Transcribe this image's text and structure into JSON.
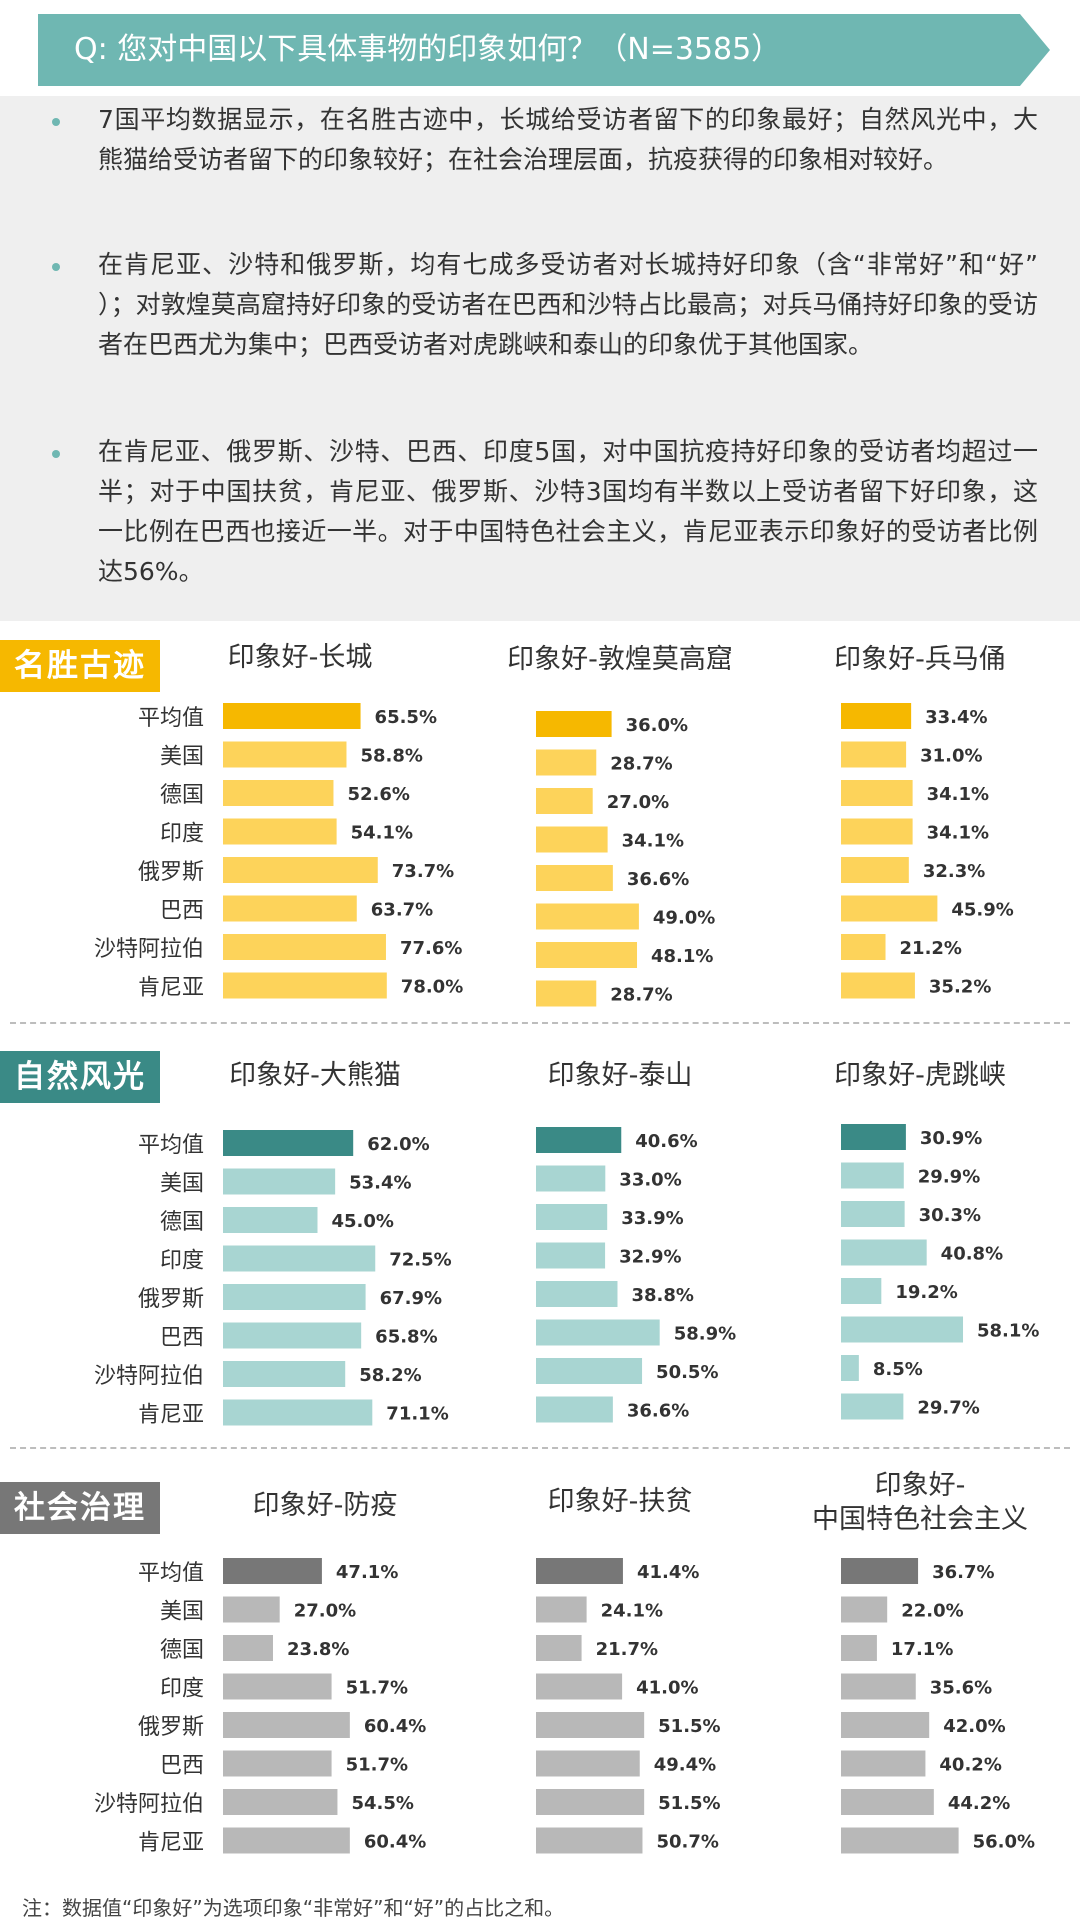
{
  "header": {
    "question": "Q: 您对中国以下具体事物的印象如何？（N=3585）"
  },
  "summary": {
    "bullets": [
      "7国平均数据显示，在名胜古迹中，长城给受访者留下的印象最好；自然风光中，大熊猫给受访者留下的印象较好；在社会治理层面，抗疫获得的印象相对较好。",
      "在肯尼亚、沙特和俄罗斯，均有七成多受访者对长城持好印象（含“非常好”和“好” ）；对敦煌莫高窟持好印象的受访者在巴西和沙特占比最高；对兵马俑持好印象的受访者在巴西尤为集中；巴西受访者对虎跳峡和泰山的印象优于其他国家。",
      "在肯尼亚、俄罗斯、沙特、巴西、印度5国，对中国抗疫持好印象的受访者均超过一半；对于中国扶贫，肯尼亚、俄罗斯、沙特3国均有半数以上受访者留下好印象，这一比例在巴西也接近一半。对于中国特色社会主义，肯尼亚表示印象好的受访者比例达56%。"
    ]
  },
  "categories": [
    "平均值",
    "美国",
    "德国",
    "印度",
    "俄罗斯",
    "巴西",
    "沙特阿拉伯",
    "肯尼亚"
  ],
  "sections": [
    {
      "label": "名胜古迹",
      "color_dark": "#f6b800",
      "color_light": "#fdd35a"
    },
    {
      "label": "自然风光",
      "color_dark": "#3a8a86",
      "color_light": "#a8d5d2"
    },
    {
      "label": "社会治理",
      "color_dark": "#777777",
      "color_light": "#b8b8b8"
    }
  ],
  "chart_data": [
    {
      "type": "bar",
      "title": "印象好-长城",
      "values": [
        65.5,
        58.8,
        52.6,
        54.1,
        73.7,
        63.7,
        77.6,
        78.0
      ],
      "unit": "%"
    },
    {
      "type": "bar",
      "title": "印象好-敦煌莫高窟",
      "values": [
        36.0,
        28.7,
        27.0,
        34.1,
        36.6,
        49.0,
        48.1,
        28.7
      ],
      "unit": "%"
    },
    {
      "type": "bar",
      "title": "印象好-兵马俑",
      "values": [
        33.4,
        31.0,
        34.1,
        34.1,
        32.3,
        45.9,
        21.2,
        35.2
      ],
      "unit": "%"
    },
    {
      "type": "bar",
      "title": "印象好-大熊猫",
      "values": [
        62.0,
        53.4,
        45.0,
        72.5,
        67.9,
        65.8,
        58.2,
        71.1
      ],
      "unit": "%"
    },
    {
      "type": "bar",
      "title": "印象好-泰山",
      "values": [
        40.6,
        33.0,
        33.9,
        32.9,
        38.8,
        58.9,
        50.5,
        36.6
      ],
      "unit": "%"
    },
    {
      "type": "bar",
      "title": "印象好-虎跳峡",
      "values": [
        30.9,
        29.9,
        30.3,
        40.8,
        19.2,
        58.1,
        8.5,
        29.7
      ],
      "unit": "%"
    },
    {
      "type": "bar",
      "title": "印象好-防疫",
      "values": [
        47.1,
        27.0,
        23.8,
        51.7,
        60.4,
        51.7,
        54.5,
        60.4
      ],
      "unit": "%"
    },
    {
      "type": "bar",
      "title": "印象好-扶贫",
      "values": [
        41.4,
        24.1,
        21.7,
        41.0,
        51.5,
        49.4,
        51.5,
        50.7
      ],
      "unit": "%"
    },
    {
      "type": "bar",
      "title": "印象好-\n中国特色社会主义",
      "values": [
        36.7,
        22.0,
        17.1,
        35.6,
        42.0,
        40.2,
        44.2,
        56.0
      ],
      "unit": "%"
    }
  ],
  "footnote": "注：数据值“印象好”为选项印象“非常好”和“好”的占比之和。"
}
